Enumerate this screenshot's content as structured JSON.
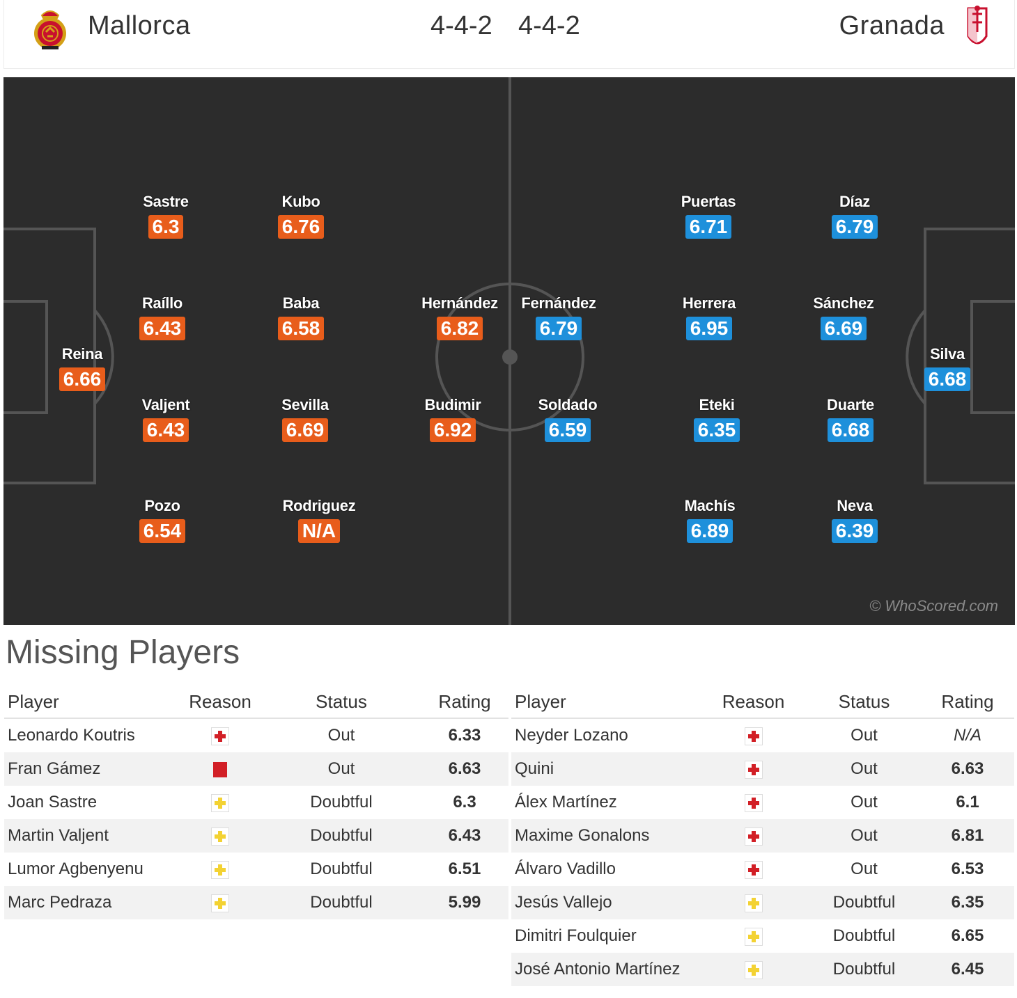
{
  "header": {
    "home_team": "Mallorca",
    "away_team": "Granada",
    "home_formation": "4-4-2",
    "away_formation": "4-4-2"
  },
  "pitch": {
    "watermark": "© WhoScored.com",
    "home_color": "#e85d1b",
    "away_color": "#1e90db",
    "home_players": [
      {
        "name": "Reina",
        "rating": "6.66"
      },
      {
        "name": "Sastre",
        "rating": "6.3"
      },
      {
        "name": "Raíllo",
        "rating": "6.43"
      },
      {
        "name": "Valjent",
        "rating": "6.43"
      },
      {
        "name": "Pozo",
        "rating": "6.54"
      },
      {
        "name": "Kubo",
        "rating": "6.76"
      },
      {
        "name": "Baba",
        "rating": "6.58"
      },
      {
        "name": "Sevilla",
        "rating": "6.69"
      },
      {
        "name": "Rodriguez",
        "rating": "N/A"
      },
      {
        "name": "Hernández",
        "rating": "6.82"
      },
      {
        "name": "Budimir",
        "rating": "6.92"
      }
    ],
    "away_players": [
      {
        "name": "Silva",
        "rating": "6.68"
      },
      {
        "name": "Díaz",
        "rating": "6.79"
      },
      {
        "name": "Sánchez",
        "rating": "6.69"
      },
      {
        "name": "Duarte",
        "rating": "6.68"
      },
      {
        "name": "Neva",
        "rating": "6.39"
      },
      {
        "name": "Puertas",
        "rating": "6.71"
      },
      {
        "name": "Herrera",
        "rating": "6.95"
      },
      {
        "name": "Eteki",
        "rating": "6.35"
      },
      {
        "name": "Machís",
        "rating": "6.89"
      },
      {
        "name": "Fernández",
        "rating": "6.79"
      },
      {
        "name": "Soldado",
        "rating": "6.59"
      }
    ]
  },
  "missing": {
    "title": "Missing Players",
    "columns": {
      "player": "Player",
      "reason": "Reason",
      "status": "Status",
      "rating": "Rating"
    },
    "home": [
      {
        "player": "Leonardo Koutris",
        "reason": "injury-icon",
        "status": "Out",
        "rating": "6.33"
      },
      {
        "player": "Fran Gámez",
        "reason": "red-card-icon",
        "status": "Out",
        "rating": "6.63"
      },
      {
        "player": "Joan Sastre",
        "reason": "doubtful-icon",
        "status": "Doubtful",
        "rating": "6.3"
      },
      {
        "player": "Martin Valjent",
        "reason": "doubtful-icon",
        "status": "Doubtful",
        "rating": "6.43"
      },
      {
        "player": "Lumor Agbenyenu",
        "reason": "doubtful-icon",
        "status": "Doubtful",
        "rating": "6.51"
      },
      {
        "player": "Marc Pedraza",
        "reason": "doubtful-icon",
        "status": "Doubtful",
        "rating": "5.99"
      }
    ],
    "away": [
      {
        "player": "Neyder Lozano",
        "reason": "injury-icon",
        "status": "Out",
        "rating": "N/A"
      },
      {
        "player": "Quini",
        "reason": "injury-icon",
        "status": "Out",
        "rating": "6.63"
      },
      {
        "player": "Álex Martínez",
        "reason": "injury-icon",
        "status": "Out",
        "rating": "6.1"
      },
      {
        "player": "Maxime Gonalons",
        "reason": "injury-icon",
        "status": "Out",
        "rating": "6.81"
      },
      {
        "player": "Álvaro Vadillo",
        "reason": "injury-icon",
        "status": "Out",
        "rating": "6.53"
      },
      {
        "player": "Jesús Vallejo",
        "reason": "doubtful-icon",
        "status": "Doubtful",
        "rating": "6.35"
      },
      {
        "player": "Dimitri Foulquier",
        "reason": "doubtful-icon",
        "status": "Doubtful",
        "rating": "6.65"
      },
      {
        "player": "José Antonio Martínez",
        "reason": "doubtful-icon",
        "status": "Doubtful",
        "rating": "6.45"
      }
    ]
  }
}
